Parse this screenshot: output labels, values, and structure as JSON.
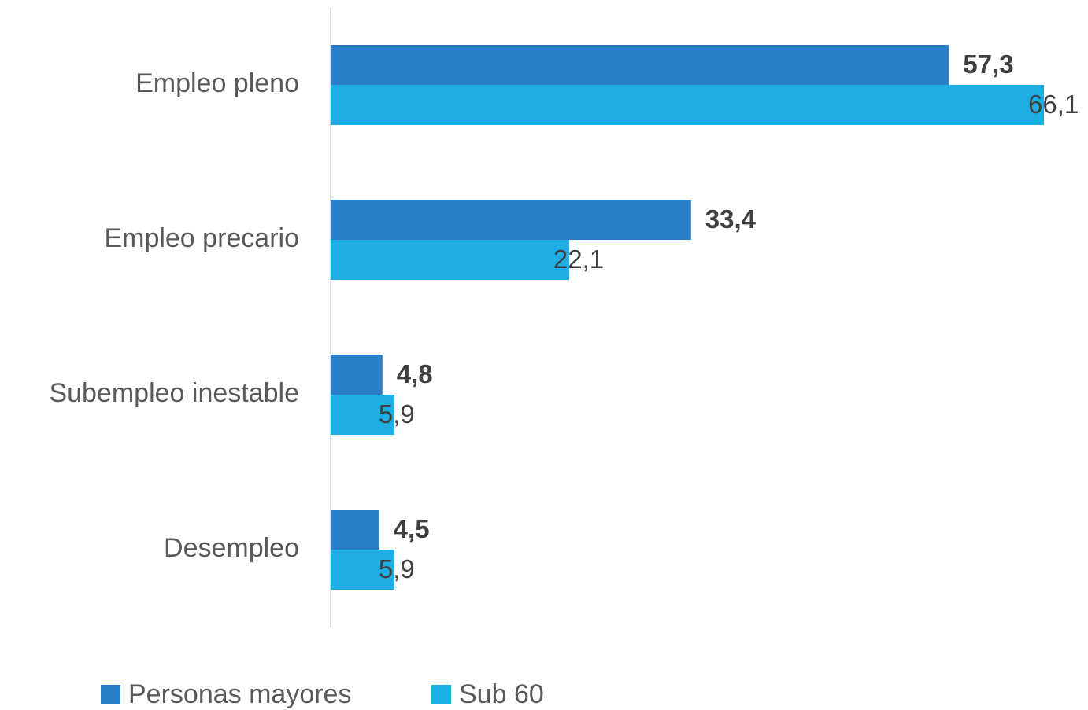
{
  "chart_data": {
    "type": "hbar",
    "categories": [
      "Empleo pleno",
      "Empleo precario",
      "Subempleo inestable",
      "Desempleo"
    ],
    "series": [
      {
        "name": "Personas mayores",
        "color": "#2a7fc6",
        "values": [
          57.3,
          33.4,
          4.8,
          4.5
        ],
        "value_labels": [
          "57,3",
          "33,4",
          "4,8",
          "4,5"
        ],
        "bold": true
      },
      {
        "name": "Sub 60",
        "color": "#1eaee3",
        "values": [
          66.1,
          22.1,
          5.9,
          5.9
        ],
        "value_labels": [
          "66,1",
          "22,1",
          "5,9",
          "5,9"
        ],
        "bold": false
      }
    ],
    "legend": "bottom"
  }
}
